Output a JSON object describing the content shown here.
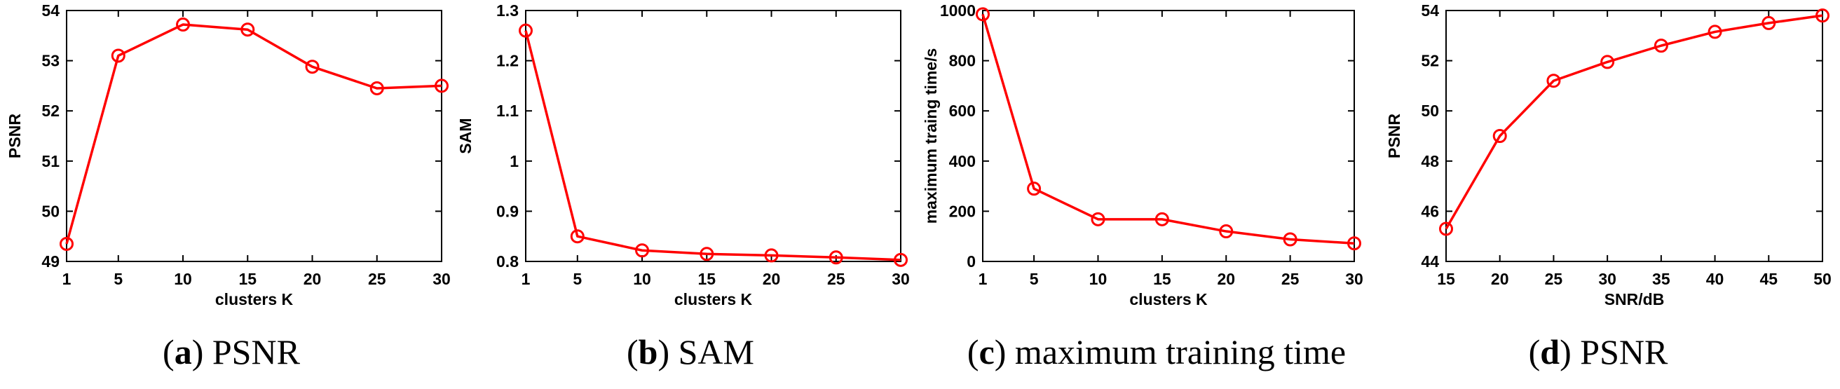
{
  "chart_data": [
    {
      "type": "line",
      "ylabel": "PSNR",
      "xlabel": "clusters K",
      "categories": [
        "1",
        "5",
        "10",
        "15",
        "20",
        "25",
        "30"
      ],
      "x": [
        1,
        5,
        10,
        15,
        20,
        25,
        30
      ],
      "xticks": [
        1,
        5,
        10,
        15,
        20,
        25,
        30
      ],
      "yticks": [
        "49",
        "50",
        "51",
        "52",
        "53",
        "54"
      ],
      "ylim": [
        49,
        54
      ],
      "series": [
        {
          "name": "PSNR",
          "color": "#ff0000",
          "marker": "circle",
          "values": [
            49.35,
            53.1,
            53.72,
            53.62,
            52.88,
            52.45,
            52.5
          ]
        }
      ],
      "caption": {
        "letter": "a",
        "text": "PSNR"
      }
    },
    {
      "type": "line",
      "ylabel": "SAM",
      "xlabel": "clusters K",
      "categories": [
        "1",
        "5",
        "10",
        "15",
        "20",
        "25",
        "30"
      ],
      "x": [
        1,
        5,
        10,
        15,
        20,
        25,
        30
      ],
      "xticks": [
        1,
        5,
        10,
        15,
        20,
        25,
        30
      ],
      "yticks": [
        "0.8",
        "0.9",
        "1",
        "1.1",
        "1.2",
        "1.3"
      ],
      "ylim": [
        0.8,
        1.3
      ],
      "series": [
        {
          "name": "SAM",
          "color": "#ff0000",
          "marker": "circle",
          "values": [
            1.26,
            0.85,
            0.822,
            0.815,
            0.812,
            0.808,
            0.803
          ]
        }
      ],
      "caption": {
        "letter": "b",
        "text": "SAM"
      }
    },
    {
      "type": "line",
      "ylabel": "maximum traing time/s",
      "xlabel": "clusters K",
      "categories": [
        "1",
        "5",
        "10",
        "15",
        "20",
        "25",
        "30"
      ],
      "x": [
        1,
        5,
        10,
        15,
        20,
        25,
        30
      ],
      "xticks": [
        1,
        5,
        10,
        15,
        20,
        25,
        30
      ],
      "yticks": [
        "0",
        "200",
        "400",
        "600",
        "800",
        "1000"
      ],
      "ylim": [
        0,
        1000
      ],
      "series": [
        {
          "name": "maximum training time",
          "color": "#ff0000",
          "marker": "circle",
          "values": [
            985,
            290,
            168,
            168,
            120,
            88,
            72
          ]
        }
      ],
      "caption": {
        "letter": "c",
        "text": "maximum training time"
      }
    },
    {
      "type": "line",
      "ylabel": "PSNR",
      "xlabel": "SNR/dB",
      "categories": [
        "15",
        "20",
        "25",
        "30",
        "35",
        "40",
        "45",
        "50"
      ],
      "x": [
        15,
        20,
        25,
        30,
        35,
        40,
        45,
        50
      ],
      "xticks": [
        15,
        20,
        25,
        30,
        35,
        40,
        45,
        50
      ],
      "yticks": [
        "44",
        "46",
        "48",
        "50",
        "52",
        "54"
      ],
      "ylim": [
        44,
        54
      ],
      "series": [
        {
          "name": "PSNR",
          "color": "#ff0000",
          "marker": "circle",
          "values": [
            45.3,
            49.0,
            51.2,
            51.95,
            52.6,
            53.15,
            53.5,
            53.8
          ]
        }
      ],
      "caption": {
        "letter": "d",
        "text": "PSNR"
      }
    }
  ]
}
